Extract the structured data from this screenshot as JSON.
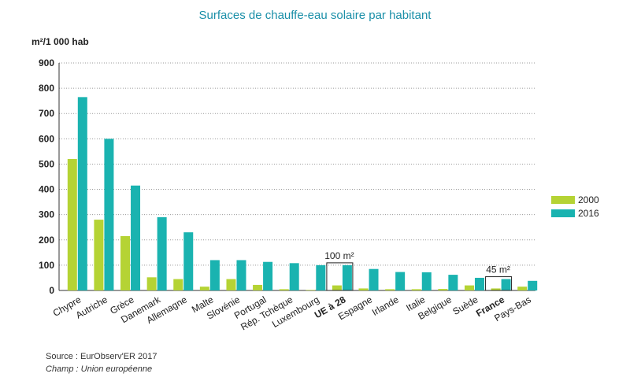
{
  "chart_data": {
    "type": "bar",
    "title": "Surfaces de chauffe-eau solaire par habitant",
    "y_label": "m²/1 000 hab",
    "categories": [
      "Chypre",
      "Autriche",
      "Grèce",
      "Danemark",
      "Allemagne",
      "Malte",
      "Slovénie",
      "Portugal",
      "Rép. Tchèque",
      "Luxembourg",
      "UE à 28",
      "Espagne",
      "Irlande",
      "Italie",
      "Belgique",
      "Suède",
      "France",
      "Pays-Bas"
    ],
    "series": [
      {
        "name": "2000",
        "color": "#b5d334",
        "values": [
          520,
          280,
          215,
          52,
          45,
          15,
          45,
          22,
          5,
          2,
          20,
          8,
          5,
          5,
          6,
          20,
          8,
          15
        ]
      },
      {
        "name": "2016",
        "color": "#1ab3b0",
        "values": [
          765,
          600,
          415,
          290,
          230,
          120,
          120,
          113,
          108,
          100,
          100,
          85,
          73,
          72,
          62,
          50,
          45,
          38
        ]
      }
    ],
    "annotations": [
      {
        "label": "100 m²",
        "index": 10
      },
      {
        "label": "45 m²",
        "index": 16
      }
    ],
    "ylim": [
      0,
      900
    ],
    "yticks": [
      0,
      100,
      200,
      300,
      400,
      500,
      600,
      700,
      800,
      900
    ],
    "grid": true,
    "legend": "right",
    "notes": [
      "Source : EurObserv'ER 2017",
      "Champ : Union européenne"
    ]
  }
}
